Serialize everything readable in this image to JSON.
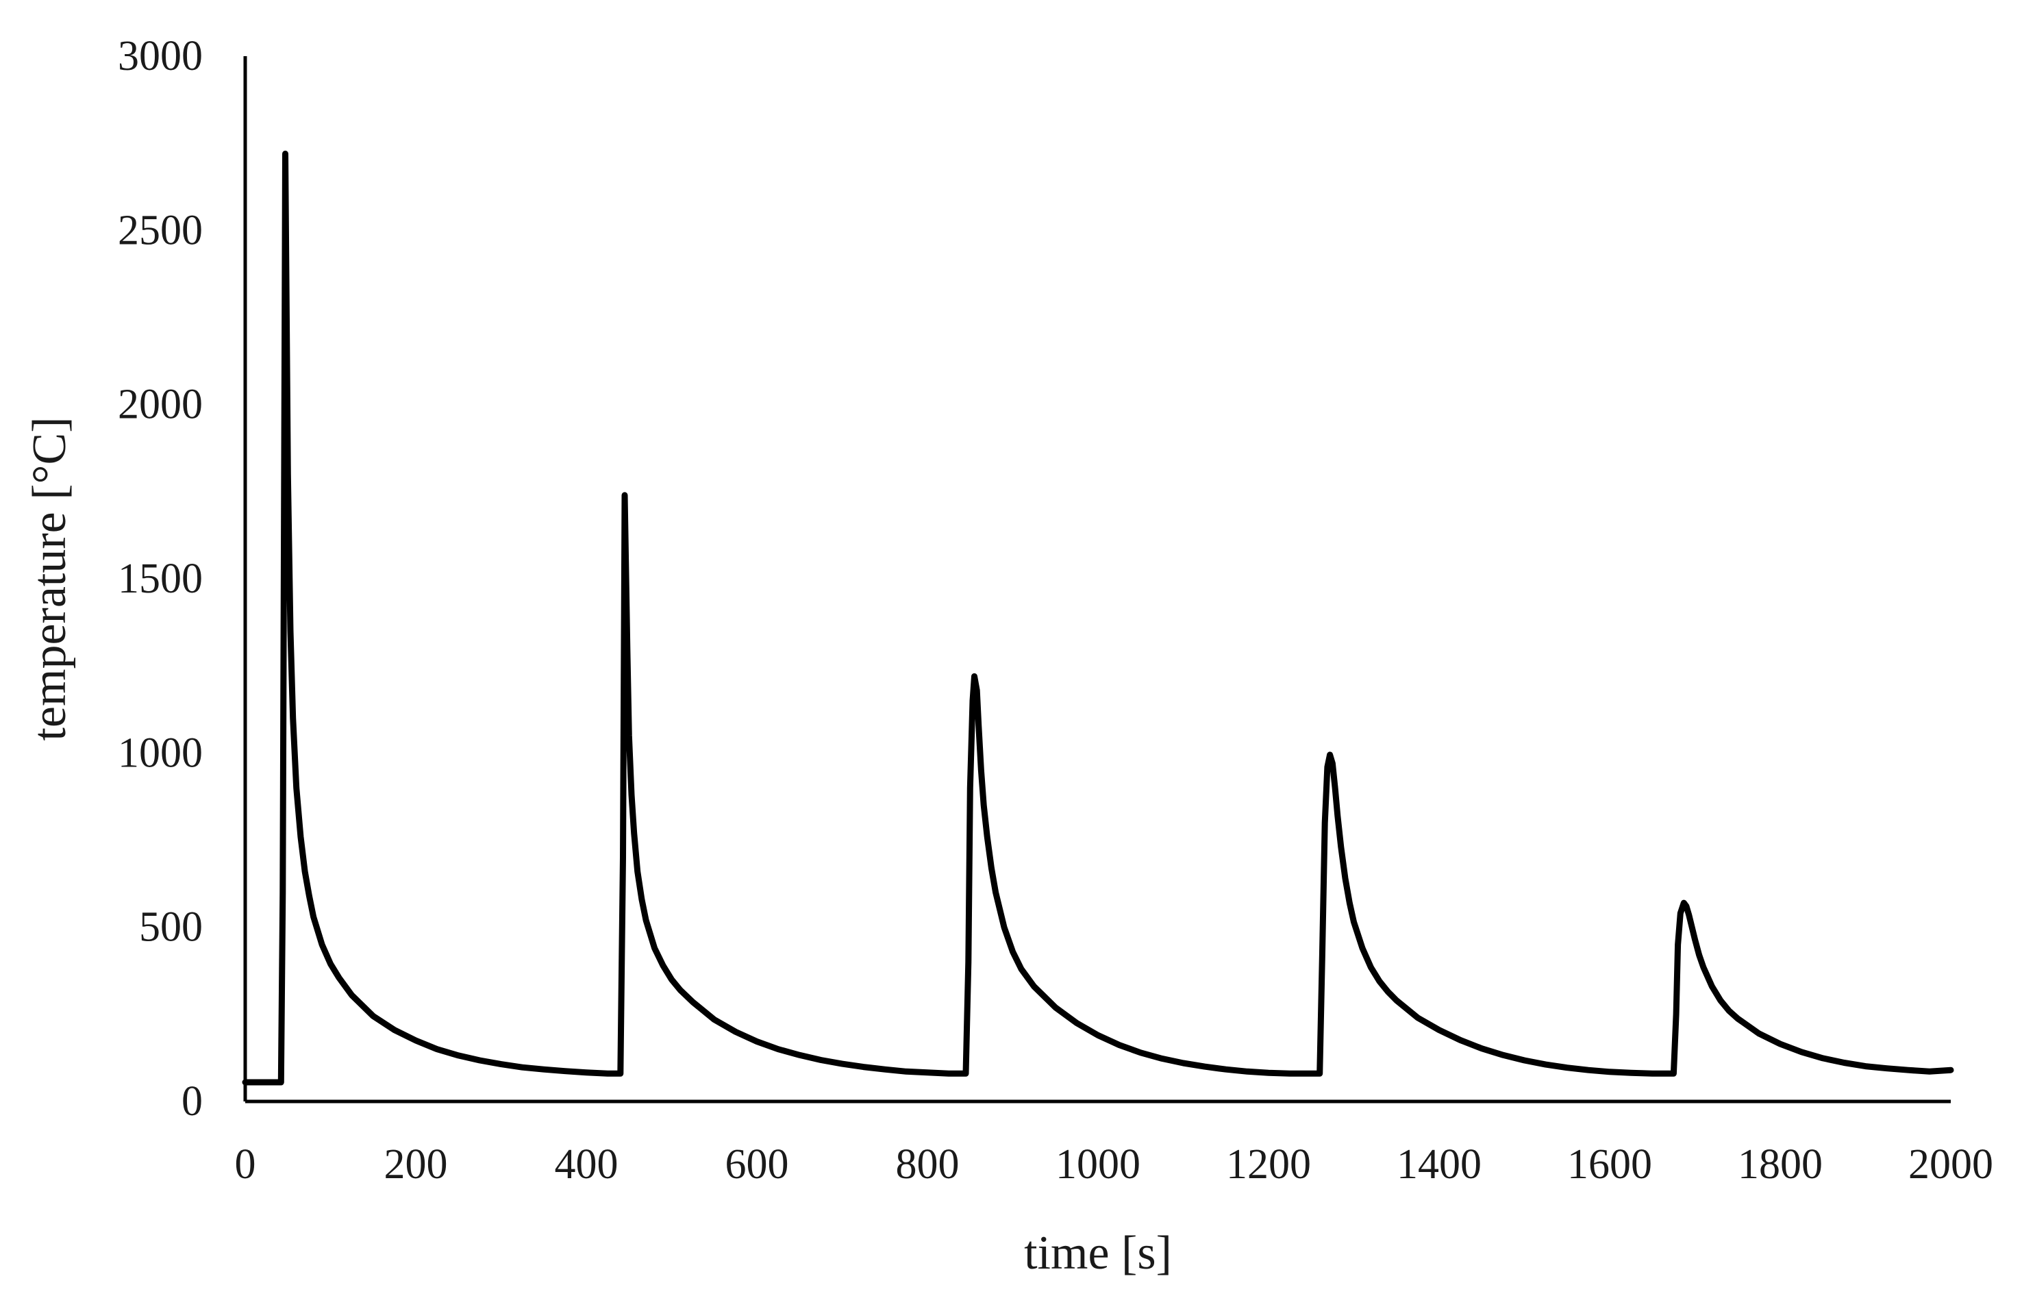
{
  "chart_data": {
    "type": "line",
    "title": "",
    "xlabel": "time [s]",
    "ylabel": "temperature [°C]",
    "xlim": [
      0,
      2000
    ],
    "ylim": [
      0,
      3000
    ],
    "x_ticks": [
      0,
      200,
      400,
      600,
      800,
      1000,
      1200,
      1400,
      1600,
      1800,
      2000
    ],
    "y_ticks": [
      0,
      500,
      1000,
      1500,
      2000,
      2500,
      3000
    ],
    "grid": false,
    "legend": "none",
    "line_color": "#000000",
    "series": [
      {
        "x": [
          0,
          42,
          44,
          47,
          50,
          53,
          56,
          60,
          65,
          70,
          75,
          80,
          90,
          100,
          110,
          125,
          150,
          175,
          200,
          225,
          250,
          275,
          300,
          325,
          350,
          375,
          400,
          425,
          440,
          443,
          445,
          448,
          450,
          453,
          456,
          460,
          465,
          470,
          480,
          490,
          500,
          510,
          525,
          550,
          575,
          600,
          625,
          650,
          675,
          700,
          725,
          750,
          775,
          800,
          825,
          845,
          848,
          850,
          853,
          855,
          858,
          860,
          863,
          866,
          870,
          875,
          880,
          890,
          900,
          910,
          925,
          950,
          975,
          1000,
          1025,
          1050,
          1075,
          1100,
          1125,
          1150,
          1175,
          1200,
          1225,
          1250,
          1260,
          1263,
          1266,
          1269,
          1272,
          1275,
          1278,
          1281,
          1285,
          1290,
          1295,
          1300,
          1310,
          1320,
          1330,
          1340,
          1350,
          1375,
          1400,
          1425,
          1450,
          1475,
          1500,
          1525,
          1550,
          1575,
          1600,
          1625,
          1650,
          1670,
          1675,
          1678,
          1680,
          1683,
          1687,
          1690,
          1693,
          1696,
          1700,
          1705,
          1710,
          1720,
          1730,
          1740,
          1750,
          1775,
          1800,
          1825,
          1850,
          1875,
          1900,
          1925,
          1950,
          1975,
          2000
        ],
        "y": [
          55,
          55,
          600,
          2720,
          1800,
          1350,
          1100,
          900,
          760,
          660,
          590,
          530,
          450,
          395,
          355,
          305,
          245,
          205,
          175,
          150,
          132,
          118,
          107,
          98,
          92,
          87,
          83,
          80,
          80,
          700,
          1740,
          1300,
          1050,
          880,
          770,
          660,
          580,
          520,
          440,
          390,
          350,
          320,
          285,
          235,
          200,
          172,
          150,
          133,
          119,
          108,
          99,
          92,
          86,
          83,
          80,
          80,
          400,
          900,
          1150,
          1220,
          1180,
          1080,
          950,
          850,
          760,
          670,
          600,
          500,
          430,
          380,
          330,
          270,
          225,
          190,
          162,
          140,
          123,
          110,
          100,
          92,
          86,
          82,
          80,
          80,
          80,
          420,
          800,
          960,
          995,
          970,
          900,
          820,
          730,
          640,
          570,
          515,
          440,
          385,
          345,
          315,
          290,
          240,
          205,
          176,
          152,
          133,
          118,
          106,
          97,
          90,
          85,
          82,
          80,
          80,
          80,
          250,
          450,
          540,
          570,
          560,
          535,
          505,
          465,
          420,
          385,
          330,
          290,
          260,
          238,
          195,
          165,
          142,
          124,
          111,
          101,
          95,
          90,
          86,
          90
        ]
      }
    ]
  }
}
